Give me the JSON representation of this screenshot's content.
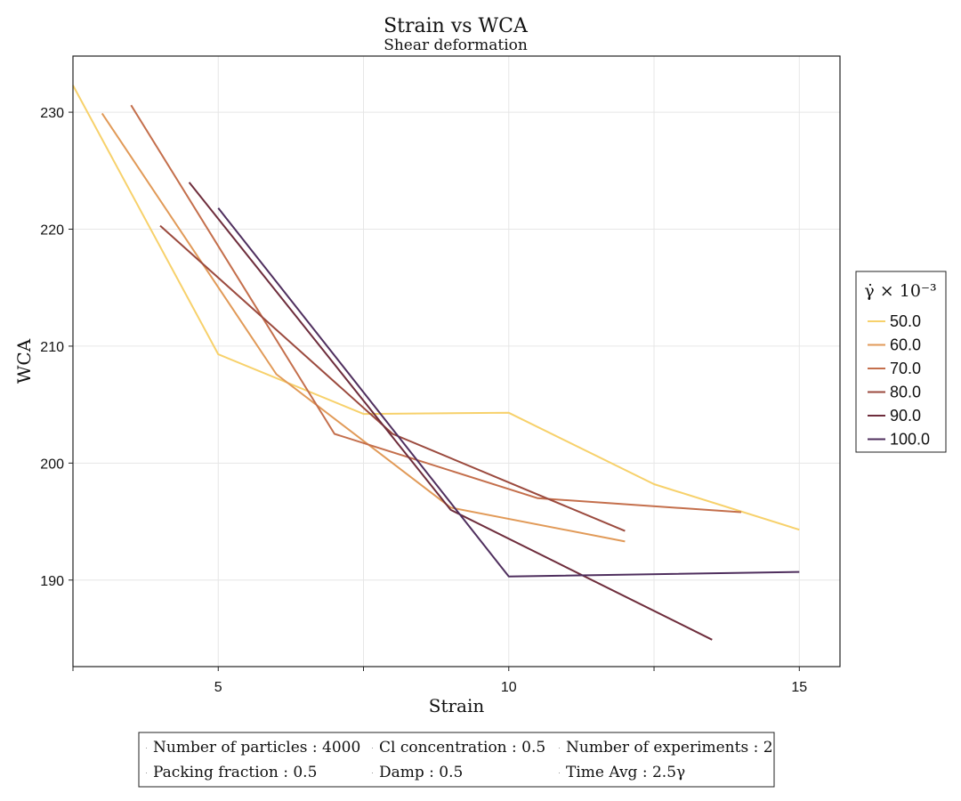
{
  "chart_data": {
    "type": "line",
    "title": "Strain vs WCA",
    "subtitle": "Shear deformation",
    "xlabel": "Strain",
    "ylabel": "WCA",
    "xlim": [
      2.5,
      15.7
    ],
    "ylim": [
      182.6,
      234.8
    ],
    "x_ticks": [
      5,
      10,
      15
    ],
    "x_minor_ticks": [
      2.5,
      7.5,
      12.5
    ],
    "y_ticks": [
      190,
      200,
      210,
      220,
      230
    ],
    "grid": true,
    "legend": {
      "title": "γ̇ × 10⁻³",
      "placement": "right"
    },
    "series": [
      {
        "name": "50.0",
        "color": "#f7d16b",
        "x": [
          2.5,
          5.0,
          7.5,
          10.0,
          12.5,
          15.0
        ],
        "y": [
          232.3,
          209.3,
          204.2,
          204.3,
          198.2,
          194.3
        ]
      },
      {
        "name": "60.0",
        "color": "#e19a58",
        "x": [
          3.0,
          6.0,
          9.0,
          12.0
        ],
        "y": [
          229.9,
          207.6,
          196.2,
          193.3
        ]
      },
      {
        "name": "70.0",
        "color": "#c46f4c",
        "x": [
          3.5,
          7.0,
          10.5,
          14.0
        ],
        "y": [
          230.6,
          202.5,
          197.0,
          195.8
        ]
      },
      {
        "name": "80.0",
        "color": "#9b4a3e",
        "x": [
          4.0,
          8.0,
          12.0
        ],
        "y": [
          220.3,
          202.5,
          194.2
        ]
      },
      {
        "name": "90.0",
        "color": "#6e2d3c",
        "x": [
          4.5,
          9.0,
          13.5
        ],
        "y": [
          224.0,
          196.0,
          184.9
        ]
      },
      {
        "name": "100.0",
        "color": "#4f2f5e",
        "x": [
          5.0,
          10.0,
          15.0
        ],
        "y": [
          221.8,
          190.3,
          190.7
        ]
      }
    ]
  },
  "info_box": {
    "row1": [
      "Number of particles : 4000",
      "Cl concentration : 0.5",
      "Number of experiments : 2"
    ],
    "row2": [
      "Packing fraction : 0.5",
      "Damp : 0.5",
      "Time Avg : 2.5γ"
    ]
  }
}
